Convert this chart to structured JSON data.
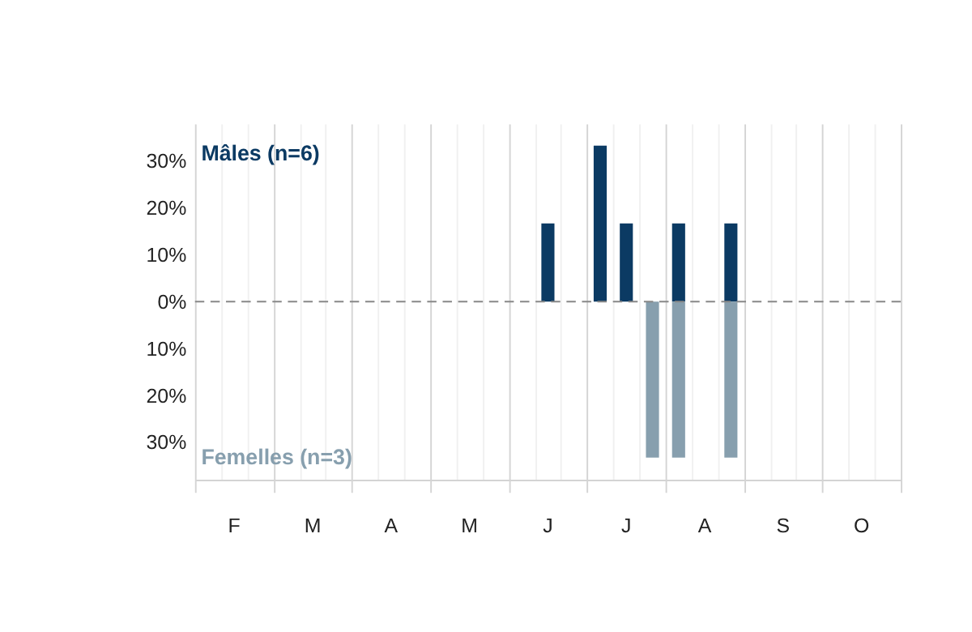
{
  "chart_data": {
    "type": "bar",
    "categories": [
      null,
      "F",
      null,
      null,
      "M",
      null,
      null,
      "A",
      null,
      null,
      "M",
      null,
      null,
      "J",
      null,
      null,
      "J",
      null,
      null,
      "A",
      null,
      null,
      "S",
      null,
      null,
      "O",
      null
    ],
    "series": [
      {
        "name": "Mâles (n=6)",
        "color": "#0b3a63",
        "values": [
          null,
          null,
          null,
          null,
          null,
          null,
          null,
          null,
          null,
          null,
          null,
          null,
          null,
          16.7,
          null,
          33.3,
          16.7,
          null,
          16.7,
          null,
          16.7,
          null,
          null,
          null,
          null,
          null,
          null
        ]
      },
      {
        "name": "Femelles (n=3)",
        "color": "#879fae",
        "values": [
          null,
          null,
          null,
          null,
          null,
          null,
          null,
          null,
          null,
          null,
          null,
          null,
          null,
          null,
          null,
          null,
          null,
          -33.3,
          -33.3,
          null,
          -33.3,
          null,
          null,
          null,
          null,
          null,
          null
        ]
      }
    ],
    "ylim": [
      -38,
      38
    ],
    "yticks": [
      {
        "value": -30,
        "label": "30%"
      },
      {
        "value": -20,
        "label": "20%"
      },
      {
        "value": -10,
        "label": "10%"
      },
      {
        "value": 0,
        "label": "0%"
      },
      {
        "value": 10,
        "label": "10%"
      },
      {
        "value": 20,
        "label": "20%"
      },
      {
        "value": 30,
        "label": "30%"
      }
    ],
    "grid": "x",
    "ref_lines": [
      {
        "axis": "y",
        "value": 0,
        "color": "#888888",
        "line_style": "dashed"
      }
    ]
  }
}
